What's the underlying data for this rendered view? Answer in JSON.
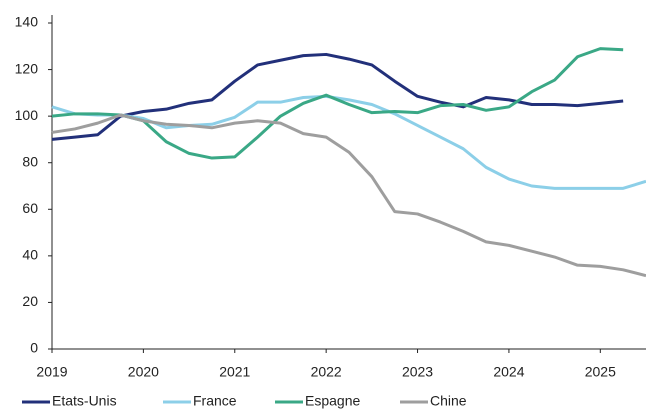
{
  "chart_data": {
    "type": "line",
    "x": [
      2019,
      2019.25,
      2019.5,
      2019.75,
      2020,
      2020.25,
      2020.5,
      2020.75,
      2021,
      2021.25,
      2021.5,
      2021.75,
      2022,
      2022.25,
      2022.5,
      2022.75,
      2023,
      2023.25,
      2023.5,
      2023.75,
      2024,
      2024.25,
      2024.5,
      2024.75,
      2025,
      2025.25,
      2025.5
    ],
    "series": [
      {
        "name": "Etats-Unis",
        "color": "#22307a",
        "values": [
          90,
          91,
          92,
          100,
          102,
          103,
          105.5,
          107,
          115,
          122,
          124,
          126,
          126.5,
          124.5,
          122,
          115,
          108.5,
          106,
          104,
          108,
          107,
          105,
          105,
          104.5,
          105.5,
          106.5,
          null
        ]
      },
      {
        "name": "France",
        "color": "#8ccfe8",
        "values": [
          104,
          101,
          100.5,
          100.5,
          99,
          95,
          96,
          96.5,
          99.5,
          106,
          106,
          108,
          108.5,
          107,
          105,
          101,
          96,
          91,
          86,
          78,
          73,
          70,
          69,
          69,
          69,
          69,
          72
        ]
      },
      {
        "name": "Espagne",
        "color": "#3aa886",
        "values": [
          100,
          101,
          101,
          100.5,
          98,
          89,
          84,
          82,
          82.5,
          91,
          100,
          105.5,
          109,
          105,
          101.5,
          102,
          101.5,
          104.5,
          105,
          102.5,
          104,
          110.5,
          115.5,
          125.5,
          129,
          128.5,
          null
        ]
      },
      {
        "name": "Chine",
        "color": "#9e9e9e",
        "values": [
          93,
          94.5,
          97,
          100.5,
          98,
          96.5,
          96,
          95,
          97,
          98,
          97,
          92.5,
          91,
          84.5,
          74,
          59,
          58,
          54.5,
          50.5,
          46,
          44.5,
          42,
          39.5,
          36,
          35.5,
          34,
          31.5
        ]
      }
    ],
    "xlim": [
      2019,
      2025.5
    ],
    "xticks": [
      2019,
      2020,
      2021,
      2022,
      2023,
      2024,
      2025
    ],
    "ylim": [
      0,
      140
    ],
    "yticks": [
      0,
      20,
      40,
      60,
      80,
      100,
      120,
      140
    ],
    "legend": "bottom"
  }
}
